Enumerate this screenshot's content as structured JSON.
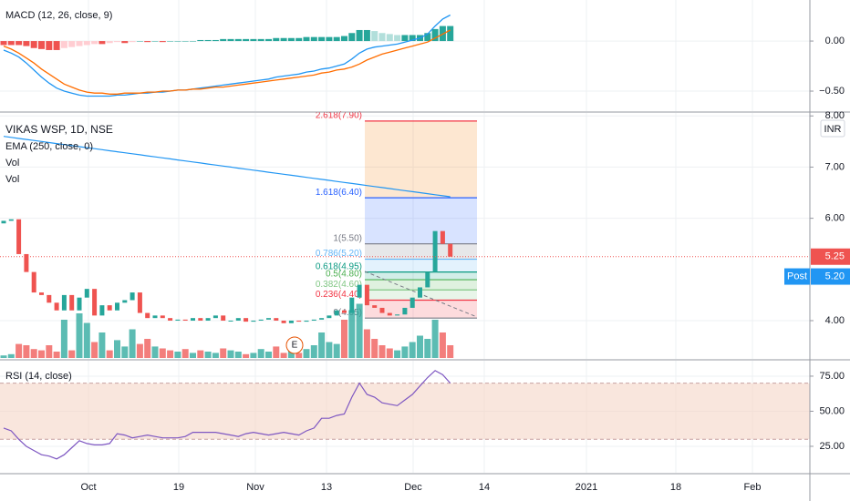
{
  "chart_data": {
    "type": "candlestick",
    "title": "VIKAS WSP, 1D, NSE",
    "indicators": [
      "EMA (250, close, 0)",
      "Vol",
      "Vol"
    ],
    "currency": "INR",
    "earnings_marker": "E",
    "x_labels": [
      "Oct",
      "19",
      "Nov",
      "13",
      "Dec",
      "14",
      "2021",
      "18",
      "Feb"
    ],
    "up_color": "#26a69a",
    "down_color": "#ef5350",
    "grid": true,
    "price": {
      "ylim": [
        3.27,
        8.04
      ],
      "yticks": [
        {
          "value": 8,
          "label": "8.00"
        },
        {
          "value": 7,
          "label": "7.00"
        },
        {
          "value": 6,
          "label": "6.00"
        },
        {
          "value": 4,
          "label": "4.00"
        }
      ],
      "open": [
        5.9,
        5.95,
        5.98,
        5.3,
        4.95,
        4.55,
        4.5,
        4.35,
        4.2,
        4.5,
        4.2,
        4.45,
        4.62,
        4.1,
        4.3,
        4.2,
        4.35,
        4.4,
        4.55,
        4.15,
        4.05,
        4.1,
        4.05,
        4.0,
        4.02,
        4.0,
        4.05,
        4.0,
        4.05,
        4.1,
        4.0,
        4.0,
        4.05,
        3.98,
        4.0,
        4.02,
        4.05,
        4.0,
        3.95,
        4.0,
        3.98,
        4.0,
        4.02,
        4.05,
        4.1,
        4.2,
        4.15,
        4.45,
        4.7,
        4.3,
        4.25,
        4.15,
        4.1,
        4.12,
        4.25,
        4.45,
        4.65,
        4.95,
        5.75,
        5.5
      ],
      "close": [
        5.95,
        5.98,
        5.3,
        4.95,
        4.55,
        4.5,
        4.35,
        4.2,
        4.5,
        4.2,
        4.45,
        4.62,
        4.1,
        4.3,
        4.2,
        4.35,
        4.4,
        4.55,
        4.15,
        4.05,
        4.1,
        4.05,
        4.0,
        4.02,
        4.0,
        4.05,
        4.0,
        4.05,
        4.1,
        4.0,
        4.0,
        4.05,
        3.98,
        4.0,
        4.02,
        4.05,
        4.0,
        3.95,
        4.0,
        3.98,
        4.0,
        4.02,
        4.05,
        4.1,
        4.2,
        4.15,
        4.45,
        4.7,
        4.3,
        4.25,
        4.15,
        4.1,
        4.12,
        4.25,
        4.45,
        4.65,
        4.95,
        5.75,
        5.5,
        5.25
      ],
      "volume": [
        4,
        6,
        22,
        20,
        14,
        12,
        20,
        10,
        60,
        12,
        70,
        55,
        25,
        40,
        12,
        28,
        18,
        45,
        22,
        30,
        18,
        15,
        12,
        10,
        14,
        8,
        12,
        10,
        8,
        15,
        12,
        10,
        6,
        8,
        14,
        10,
        18,
        8,
        12,
        8,
        14,
        20,
        40,
        25,
        22,
        60,
        75,
        85,
        45,
        30,
        20,
        15,
        12,
        18,
        25,
        35,
        30,
        60,
        40,
        20
      ],
      "ema": {
        "color": "#2196f3",
        "values": [
          7.6,
          7.58,
          7.56,
          7.54,
          7.52,
          7.5,
          7.48,
          7.46,
          7.44,
          7.42,
          7.4,
          7.38,
          7.36,
          7.34,
          7.32,
          7.3,
          7.28,
          7.26,
          7.24,
          7.22,
          7.2,
          7.18,
          7.16,
          7.14,
          7.12,
          7.1,
          7.08,
          7.06,
          7.04,
          7.02,
          7.0,
          6.98,
          6.96,
          6.94,
          6.92,
          6.9,
          6.88,
          6.86,
          6.84,
          6.82,
          6.8,
          6.78,
          6.76,
          6.74,
          6.72,
          6.7,
          6.68,
          6.66,
          6.64,
          6.62,
          6.6,
          6.58,
          6.56,
          6.54,
          6.52,
          6.5,
          6.48,
          6.46,
          6.44,
          6.42
        ]
      },
      "fib_levels": [
        {
          "value": 7.9,
          "label": "2.618(7.90)",
          "color": "#f57c00",
          "line": "#f23645"
        },
        {
          "value": 6.4,
          "label": "1.618(6.40)",
          "color": "#2962ff",
          "line": "#2962ff"
        },
        {
          "value": 5.5,
          "label": "1(5.50)",
          "color": "#787b86",
          "line": "#787b86"
        },
        {
          "value": 5.2,
          "label": "0.786(5.20)",
          "color": "#64b5f6",
          "line": "#64b5f6"
        },
        {
          "value": 4.95,
          "label": "0.618(4.95)",
          "color": "#089981",
          "line": "#089981"
        },
        {
          "value": 4.8,
          "label": "0.5(4.80)",
          "color": "#4caf50",
          "line": "#4caf50"
        },
        {
          "value": 4.6,
          "label": "0.382(4.60)",
          "color": "#81c784",
          "line": "#81c784"
        },
        {
          "value": 4.4,
          "label": "0.236(4.40)",
          "color": "#f23645",
          "line": "#f23645"
        },
        {
          "value": 4.05,
          "label": "0(4.05)",
          "color": "#787b86",
          "line": "#787b86"
        }
      ],
      "last_price": {
        "value": 5.25,
        "label": "5.25",
        "color": "#ef5350"
      },
      "post_price": {
        "value": 5.2,
        "label": "5.20",
        "tag": "Post",
        "color": "#2196f3"
      }
    },
    "macd": {
      "title": "MACD (12, 26, close, 9)",
      "ylim": [
        -0.7,
        0.41
      ],
      "yticks": [
        {
          "value": 0,
          "label": "0.00"
        },
        {
          "value": -0.5,
          "label": "−0.50"
        }
      ],
      "macd": {
        "color": "#2196f3",
        "values": [
          -0.09,
          -0.12,
          -0.16,
          -0.22,
          -0.29,
          -0.36,
          -0.42,
          -0.47,
          -0.5,
          -0.52,
          -0.54,
          -0.55,
          -0.55,
          -0.55,
          -0.55,
          -0.54,
          -0.54,
          -0.53,
          -0.52,
          -0.52,
          -0.51,
          -0.51,
          -0.5,
          -0.49,
          -0.49,
          -0.48,
          -0.47,
          -0.46,
          -0.45,
          -0.44,
          -0.43,
          -0.42,
          -0.41,
          -0.4,
          -0.39,
          -0.38,
          -0.36,
          -0.35,
          -0.34,
          -0.33,
          -0.31,
          -0.3,
          -0.28,
          -0.27,
          -0.25,
          -0.23,
          -0.18,
          -0.12,
          -0.08,
          -0.06,
          -0.05,
          -0.04,
          -0.03,
          -0.01,
          0.01,
          0.03,
          0.07,
          0.15,
          0.22,
          0.26
        ]
      },
      "signal": {
        "color": "#ff6d00",
        "values": [
          -0.05,
          -0.08,
          -0.12,
          -0.17,
          -0.22,
          -0.28,
          -0.33,
          -0.38,
          -0.43,
          -0.46,
          -0.49,
          -0.51,
          -0.52,
          -0.52,
          -0.53,
          -0.53,
          -0.52,
          -0.52,
          -0.52,
          -0.51,
          -0.51,
          -0.5,
          -0.5,
          -0.49,
          -0.49,
          -0.48,
          -0.48,
          -0.47,
          -0.46,
          -0.46,
          -0.45,
          -0.44,
          -0.43,
          -0.42,
          -0.41,
          -0.4,
          -0.39,
          -0.38,
          -0.37,
          -0.36,
          -0.35,
          -0.34,
          -0.32,
          -0.31,
          -0.29,
          -0.28,
          -0.26,
          -0.23,
          -0.19,
          -0.16,
          -0.13,
          -0.11,
          -0.09,
          -0.07,
          -0.05,
          -0.03,
          -0.01,
          0.03,
          0.07,
          0.11
        ]
      },
      "histogram": {
        "colors": [
          "#26a69a",
          "#b2dfdb",
          "#ef5350",
          "#ffcdd2"
        ],
        "values": [
          -0.04,
          -0.04,
          -0.04,
          -0.05,
          -0.07,
          -0.08,
          -0.09,
          -0.09,
          -0.07,
          -0.06,
          -0.05,
          -0.04,
          -0.03,
          -0.03,
          -0.02,
          -0.01,
          -0.02,
          -0.01,
          0,
          -0.01,
          0,
          -0.01,
          0,
          0,
          0,
          0,
          0.01,
          0.01,
          0.01,
          0.02,
          0.02,
          0.02,
          0.02,
          0.02,
          0.02,
          0.02,
          0.03,
          0.03,
          0.03,
          0.03,
          0.04,
          0.04,
          0.04,
          0.04,
          0.04,
          0.05,
          0.08,
          0.11,
          0.11,
          0.1,
          0.08,
          0.07,
          0.06,
          0.06,
          0.06,
          0.06,
          0.08,
          0.12,
          0.15,
          0.15
        ]
      }
    },
    "rsi": {
      "title": "RSI (14, close)",
      "ylim": [
        5.5,
        86
      ],
      "yticks": [
        {
          "value": 75,
          "label": "75.00"
        },
        {
          "value": 50,
          "label": "50.00"
        },
        {
          "value": 25,
          "label": "25.00"
        }
      ],
      "band": [
        30,
        70
      ],
      "color": "#7e57c2",
      "values": [
        38,
        36,
        30,
        25,
        22,
        19,
        18,
        16,
        19,
        24,
        29,
        27,
        26,
        26,
        27,
        34,
        33,
        31,
        32,
        33,
        32,
        31,
        31,
        31,
        32,
        35,
        35,
        35,
        35,
        34,
        33,
        32,
        34,
        35,
        34,
        33,
        34,
        35,
        34,
        33,
        36,
        38,
        45,
        45,
        47,
        48,
        60,
        70,
        62,
        60,
        56,
        55,
        54,
        58,
        62,
        68,
        74,
        79,
        76,
        70
      ]
    }
  }
}
